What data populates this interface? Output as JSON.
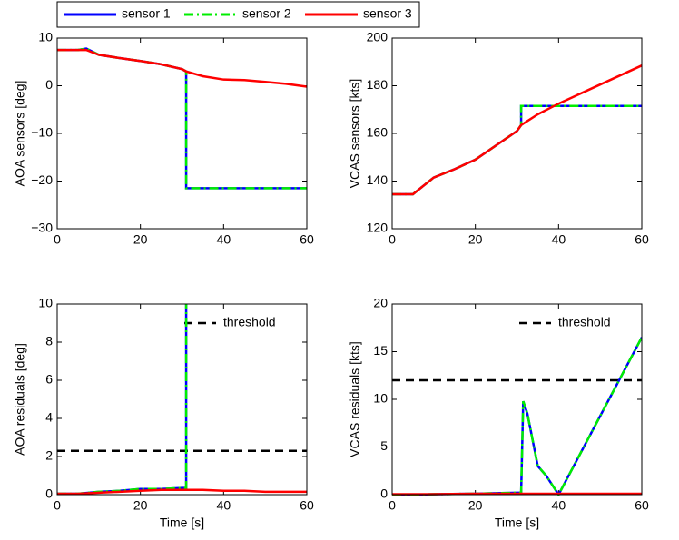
{
  "chart_data": [
    {
      "type": "line",
      "ylabel": "AOA sensors [deg]",
      "x": [
        0,
        5,
        7,
        10,
        15,
        20,
        25,
        30,
        31,
        31,
        35,
        40,
        45,
        50,
        55,
        60
      ],
      "xlim": [
        0,
        60
      ],
      "xticks": [
        0,
        20,
        40,
        60
      ],
      "ylim": [
        -30,
        10
      ],
      "yticks": [
        {
          "value": -30,
          "label": "−30"
        },
        {
          "value": -20,
          "label": "−20"
        },
        {
          "value": -10,
          "label": "−10"
        },
        0,
        10
      ],
      "series": [
        {
          "name": "sensor 1",
          "color": "#0000ff",
          "linestyle": "solid",
          "values": [
            7.5,
            7.5,
            7.8,
            6.5,
            5.8,
            5.2,
            4.5,
            3.5,
            3,
            -21.5,
            -21.5,
            -21.5,
            -21.5,
            -21.5,
            -21.5,
            -21.5
          ]
        },
        {
          "name": "sensor 2",
          "color": "#00ee00",
          "linestyle": "dashdot",
          "values": [
            7.5,
            7.5,
            7.8,
            6.5,
            5.8,
            5.2,
            4.5,
            3.5,
            3,
            -21.5,
            -21.5,
            -21.5,
            -21.5,
            -21.5,
            -21.5,
            -21.5
          ]
        },
        {
          "name": "sensor 3",
          "color": "#ff0000",
          "linestyle": "solid",
          "values": [
            7.5,
            7.5,
            7.5,
            6.5,
            5.8,
            5.2,
            4.5,
            3.5,
            3,
            3,
            2,
            1.3,
            1.2,
            0.8,
            0.4,
            -0.2
          ]
        }
      ]
    },
    {
      "type": "line",
      "ylabel": "VCAS sensors [kts]",
      "x": [
        0,
        5,
        10,
        15,
        20,
        25,
        30,
        31,
        31,
        35,
        40,
        45,
        50,
        55,
        60
      ],
      "xlim": [
        0,
        60
      ],
      "xticks": [
        0,
        20,
        40,
        60
      ],
      "ylim": [
        120,
        200
      ],
      "yticks": [
        120,
        140,
        160,
        180,
        200
      ],
      "series": [
        {
          "color": "#0000ff",
          "linestyle": "solid",
          "values": [
            134.5,
            134.5,
            141.5,
            145,
            149,
            155,
            161,
            163.5,
            171.5,
            171.5,
            171.5,
            171.5,
            171.5,
            171.5,
            171.5
          ]
        },
        {
          "color": "#00ee00",
          "linestyle": "dashdot",
          "values": [
            134.5,
            134.5,
            141.5,
            145,
            149,
            155,
            161,
            163.5,
            171.5,
            171.5,
            171.5,
            171.5,
            171.5,
            171.5,
            171.5
          ]
        },
        {
          "color": "#ff0000",
          "linestyle": "solid",
          "values": [
            134.5,
            134.5,
            141.5,
            145,
            149,
            155,
            161,
            163.5,
            163.5,
            168,
            172.5,
            176.5,
            180.5,
            184.5,
            188.5
          ]
        }
      ]
    },
    {
      "type": "line",
      "ylabel": "AOA residuals [deg]",
      "xlabel": "Time [s]",
      "x": [
        0,
        5,
        10,
        15,
        20,
        25,
        30,
        31,
        31,
        35,
        40,
        45,
        50,
        55,
        60
      ],
      "xlim": [
        0,
        60
      ],
      "xticks": [
        0,
        20,
        40,
        60
      ],
      "ylim": [
        0,
        10
      ],
      "yticks": [
        0,
        2,
        4,
        6,
        8,
        10
      ],
      "threshold": {
        "name": "threshold",
        "value": 2.3,
        "color": "#000000"
      },
      "series": [
        {
          "color": "#0000ff",
          "linestyle": "solid",
          "values": [
            0.05,
            0.05,
            0.15,
            0.2,
            0.3,
            0.3,
            0.35,
            0.35,
            10,
            null,
            null,
            null,
            null,
            null,
            null
          ]
        },
        {
          "color": "#00ee00",
          "linestyle": "dashdot",
          "values": [
            0.05,
            0.05,
            0.15,
            0.2,
            0.3,
            0.3,
            0.35,
            0.35,
            10,
            null,
            null,
            null,
            null,
            null,
            null
          ]
        },
        {
          "color": "#ff0000",
          "linestyle": "solid",
          "values": [
            0.05,
            0.05,
            0.1,
            0.15,
            0.2,
            0.25,
            0.25,
            0.25,
            0.25,
            0.25,
            0.2,
            0.2,
            0.15,
            0.15,
            0.15
          ]
        }
      ]
    },
    {
      "type": "line",
      "ylabel": "VCAS residuals [kts]",
      "xlabel": "Time [s]",
      "x": [
        0,
        10,
        20,
        25,
        30,
        31,
        31.5,
        32.5,
        35,
        37,
        40,
        50,
        60
      ],
      "xlim": [
        0,
        60
      ],
      "xticks": [
        0,
        20,
        40,
        60
      ],
      "ylim": [
        0,
        20
      ],
      "yticks": [
        0,
        5,
        10,
        15,
        20
      ],
      "threshold": {
        "name": "threshold",
        "value": 12,
        "color": "#000000"
      },
      "series": [
        {
          "color": "#0000ff",
          "linestyle": "solid",
          "values": [
            -0.1,
            0.05,
            0.1,
            0.15,
            0.2,
            0.2,
            9.8,
            8.5,
            3,
            2,
            0,
            8.25,
            16.5
          ]
        },
        {
          "color": "#00ee00",
          "linestyle": "dashdot",
          "values": [
            -0.1,
            0.05,
            0.1,
            0.15,
            0.2,
            0.2,
            9.8,
            8.5,
            3,
            2,
            0,
            8.25,
            16.5
          ]
        },
        {
          "color": "#ff0000",
          "linestyle": "solid",
          "values": [
            0.05,
            0.05,
            0.1,
            0.1,
            0.1,
            0.1,
            0.1,
            0.1,
            0.1,
            0.1,
            0.1,
            0.1,
            0.1
          ]
        }
      ]
    }
  ]
}
